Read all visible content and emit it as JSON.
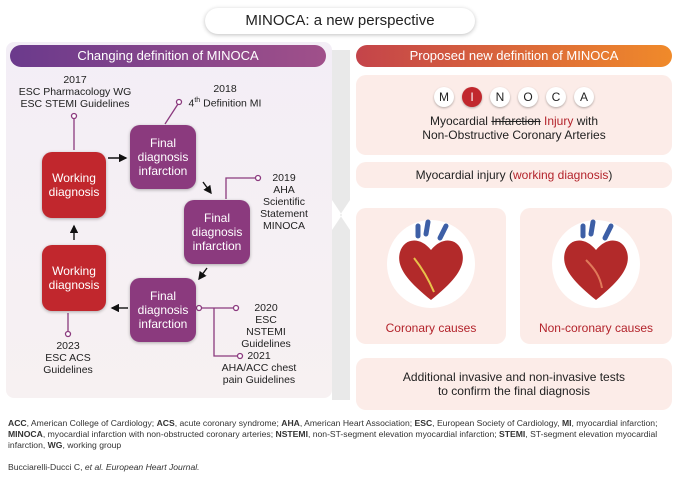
{
  "header": {
    "title": "MINOCA: a new perspective"
  },
  "left_panel": {
    "title": "Changing definition of MINOCA",
    "working_boxes": [
      {
        "lines": [
          "Working",
          "diagnosis"
        ]
      },
      {
        "lines": [
          "Working",
          "diagnosis"
        ]
      }
    ],
    "final_boxes": [
      {
        "lines": [
          "Final",
          "diagnosis",
          "infarction"
        ]
      },
      {
        "lines": [
          "Final",
          "diagnosis",
          "infarction"
        ]
      },
      {
        "lines": [
          "Final",
          "diagnosis",
          "infarction"
        ]
      }
    ],
    "milestones": {
      "m2017": {
        "lines": [
          "2017",
          "ESC Pharmacology WG",
          "ESC STEMI Guidelines"
        ]
      },
      "m2018": {
        "year": "2018",
        "ordinal": "4",
        "suffix": "th",
        "text": " Definition MI"
      },
      "m2019": {
        "lines": [
          "2019",
          "AHA",
          "Scientific",
          "Statement",
          "MINOCA"
        ]
      },
      "m2020": {
        "lines": [
          "2020",
          "ESC NSTEMI",
          "Guidelines"
        ]
      },
      "m2021": {
        "lines": [
          "2021",
          "AHA/ACC chest",
          "pain Guidelines"
        ]
      },
      "m2023": {
        "lines": [
          "2023",
          "ESC ACS",
          "Guidelines"
        ]
      }
    }
  },
  "right_panel": {
    "title": "Proposed new definition of MINOCA",
    "acronym": {
      "letters": [
        "M",
        "I",
        "N",
        "O",
        "C",
        "A"
      ],
      "highlight": 1
    },
    "expansion": {
      "word1": "Myocardial ",
      "struck": "Infarction",
      "replacement": " Injury",
      "word2": " with",
      "line2": "Non-Obstructive Coronary Arteries"
    },
    "working": {
      "text": "Myocardial injury (",
      "highlight": "working diagnosis",
      "close": ")"
    },
    "causes": [
      "Coronary causes",
      "Non-coronary causes"
    ],
    "tests": [
      "Additional invasive and non-invasive tests",
      "to confirm the final diagnosis"
    ]
  },
  "footer": {
    "abbreviations": [
      {
        "abbr": "ACC",
        "rest": ", American College of Cardiology; "
      },
      {
        "abbr": "ACS",
        "rest": ", acute coronary syndrome; "
      },
      {
        "abbr": "AHA",
        "rest": ", American Heart Association; "
      },
      {
        "abbr": "ESC",
        "rest": ", European Society of Cardiology, "
      },
      {
        "abbr": "MI",
        "rest": ", myocardial infarction; "
      },
      {
        "abbr": "MINOCA",
        "rest": ", myocardial infarction with non-obstructed coronary arteries; "
      },
      {
        "abbr": "NSTEMI",
        "rest": ", non-ST-segment elevation myocardial infarction; "
      },
      {
        "abbr": "STEMI",
        "rest": ", ST-segment elevation myocardial infarction, "
      },
      {
        "abbr": "WG",
        "rest": ", working group"
      }
    ],
    "citation": {
      "authors": "Bucciarelli-Ducci C, ",
      "italic": "et al. European Heart Journal."
    }
  }
}
